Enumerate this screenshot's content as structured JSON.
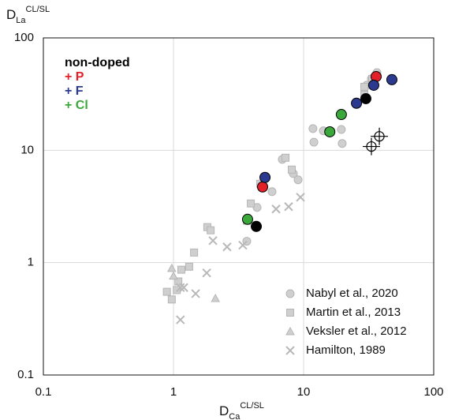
{
  "chart_data": {
    "type": "scatter",
    "xlabel": {
      "main": "D",
      "sub": "Ca",
      "sup": "CL/SL"
    },
    "ylabel": {
      "main": "D",
      "sub": "La",
      "sup": "CL/SL"
    },
    "xscale": "log",
    "yscale": "log",
    "xlim": [
      0.1,
      100
    ],
    "ylim": [
      0.1,
      100
    ],
    "xticks": [
      0.1,
      1,
      10,
      100
    ],
    "yticks": [
      0.1,
      1,
      10,
      100
    ],
    "grid": true,
    "series": [
      {
        "name": "Nabyl et al., 2020",
        "color": "#cfcfcf",
        "marker": "circle",
        "x": [
          6.86,
          8.34,
          9.07,
          5.72,
          4.39,
          3.66,
          11.8,
          12.0,
          14.2,
          19.8,
          19.5,
          30.5,
          33.2,
          36.6
        ],
        "y": [
          8.3,
          6.2,
          5.46,
          4.28,
          3.1,
          1.55,
          15.6,
          11.8,
          14.9,
          11.5,
          15.3,
          37.9,
          43.2,
          49.1
        ]
      },
      {
        "name": "Martin et al., 2013",
        "color": "#cfcfcf",
        "marker": "square",
        "x": [
          1.15,
          1.09,
          1.06,
          0.97,
          0.89,
          1.44,
          1.32,
          1.82,
          1.93,
          3.93,
          3.66,
          4.64,
          7.26,
          8.11,
          29.3,
          29.3,
          33.7
        ],
        "y": [
          0.865,
          0.68,
          0.57,
          0.47,
          0.55,
          1.23,
          0.92,
          2.07,
          1.94,
          3.36,
          2.36,
          5.03,
          8.58,
          6.73,
          36.7,
          31.2,
          43.2
        ]
      },
      {
        "name": "Veksler et al., 2012",
        "color": "#cfcfcf",
        "marker": "triangle",
        "x": [
          1.0,
          0.97,
          2.1
        ],
        "y": [
          0.76,
          0.89,
          0.48
        ]
      },
      {
        "name": "Hamilton, 1989",
        "color": "#b8b8b8",
        "marker": "cross",
        "x": [
          1.13,
          1.13,
          1.2,
          1.48,
          1.8,
          2.01,
          2.58,
          3.41,
          6.14,
          7.67,
          9.46
        ],
        "y": [
          0.31,
          0.6,
          0.6,
          0.53,
          0.81,
          1.57,
          1.38,
          1.43,
          3.0,
          3.15,
          3.82
        ]
      },
      {
        "name": "non-doped",
        "color": "#000000",
        "marker": "dot",
        "x": [
          4.33,
          30.1
        ],
        "y": [
          2.1,
          28.8
        ]
      },
      {
        "name": "+ P",
        "color": "#e3202a",
        "marker": "dot",
        "x": [
          4.84,
          36.1
        ],
        "y": [
          4.72,
          45.3
        ]
      },
      {
        "name": "+ F",
        "color": "#2b3a8e",
        "marker": "dot",
        "x": [
          5.05,
          25.5,
          34.6,
          47.7
        ],
        "y": [
          5.73,
          26.2,
          37.9,
          42.5
        ]
      },
      {
        "name": "+ Cl",
        "color": "#3aa83a",
        "marker": "dot",
        "x": [
          3.71,
          15.9,
          19.5
        ],
        "y": [
          2.43,
          14.6,
          20.8
        ]
      },
      {
        "color": "#000000",
        "marker": "open",
        "x": [
          33.2,
          38.2
        ],
        "y": [
          10.8,
          13.3
        ]
      }
    ]
  }
}
